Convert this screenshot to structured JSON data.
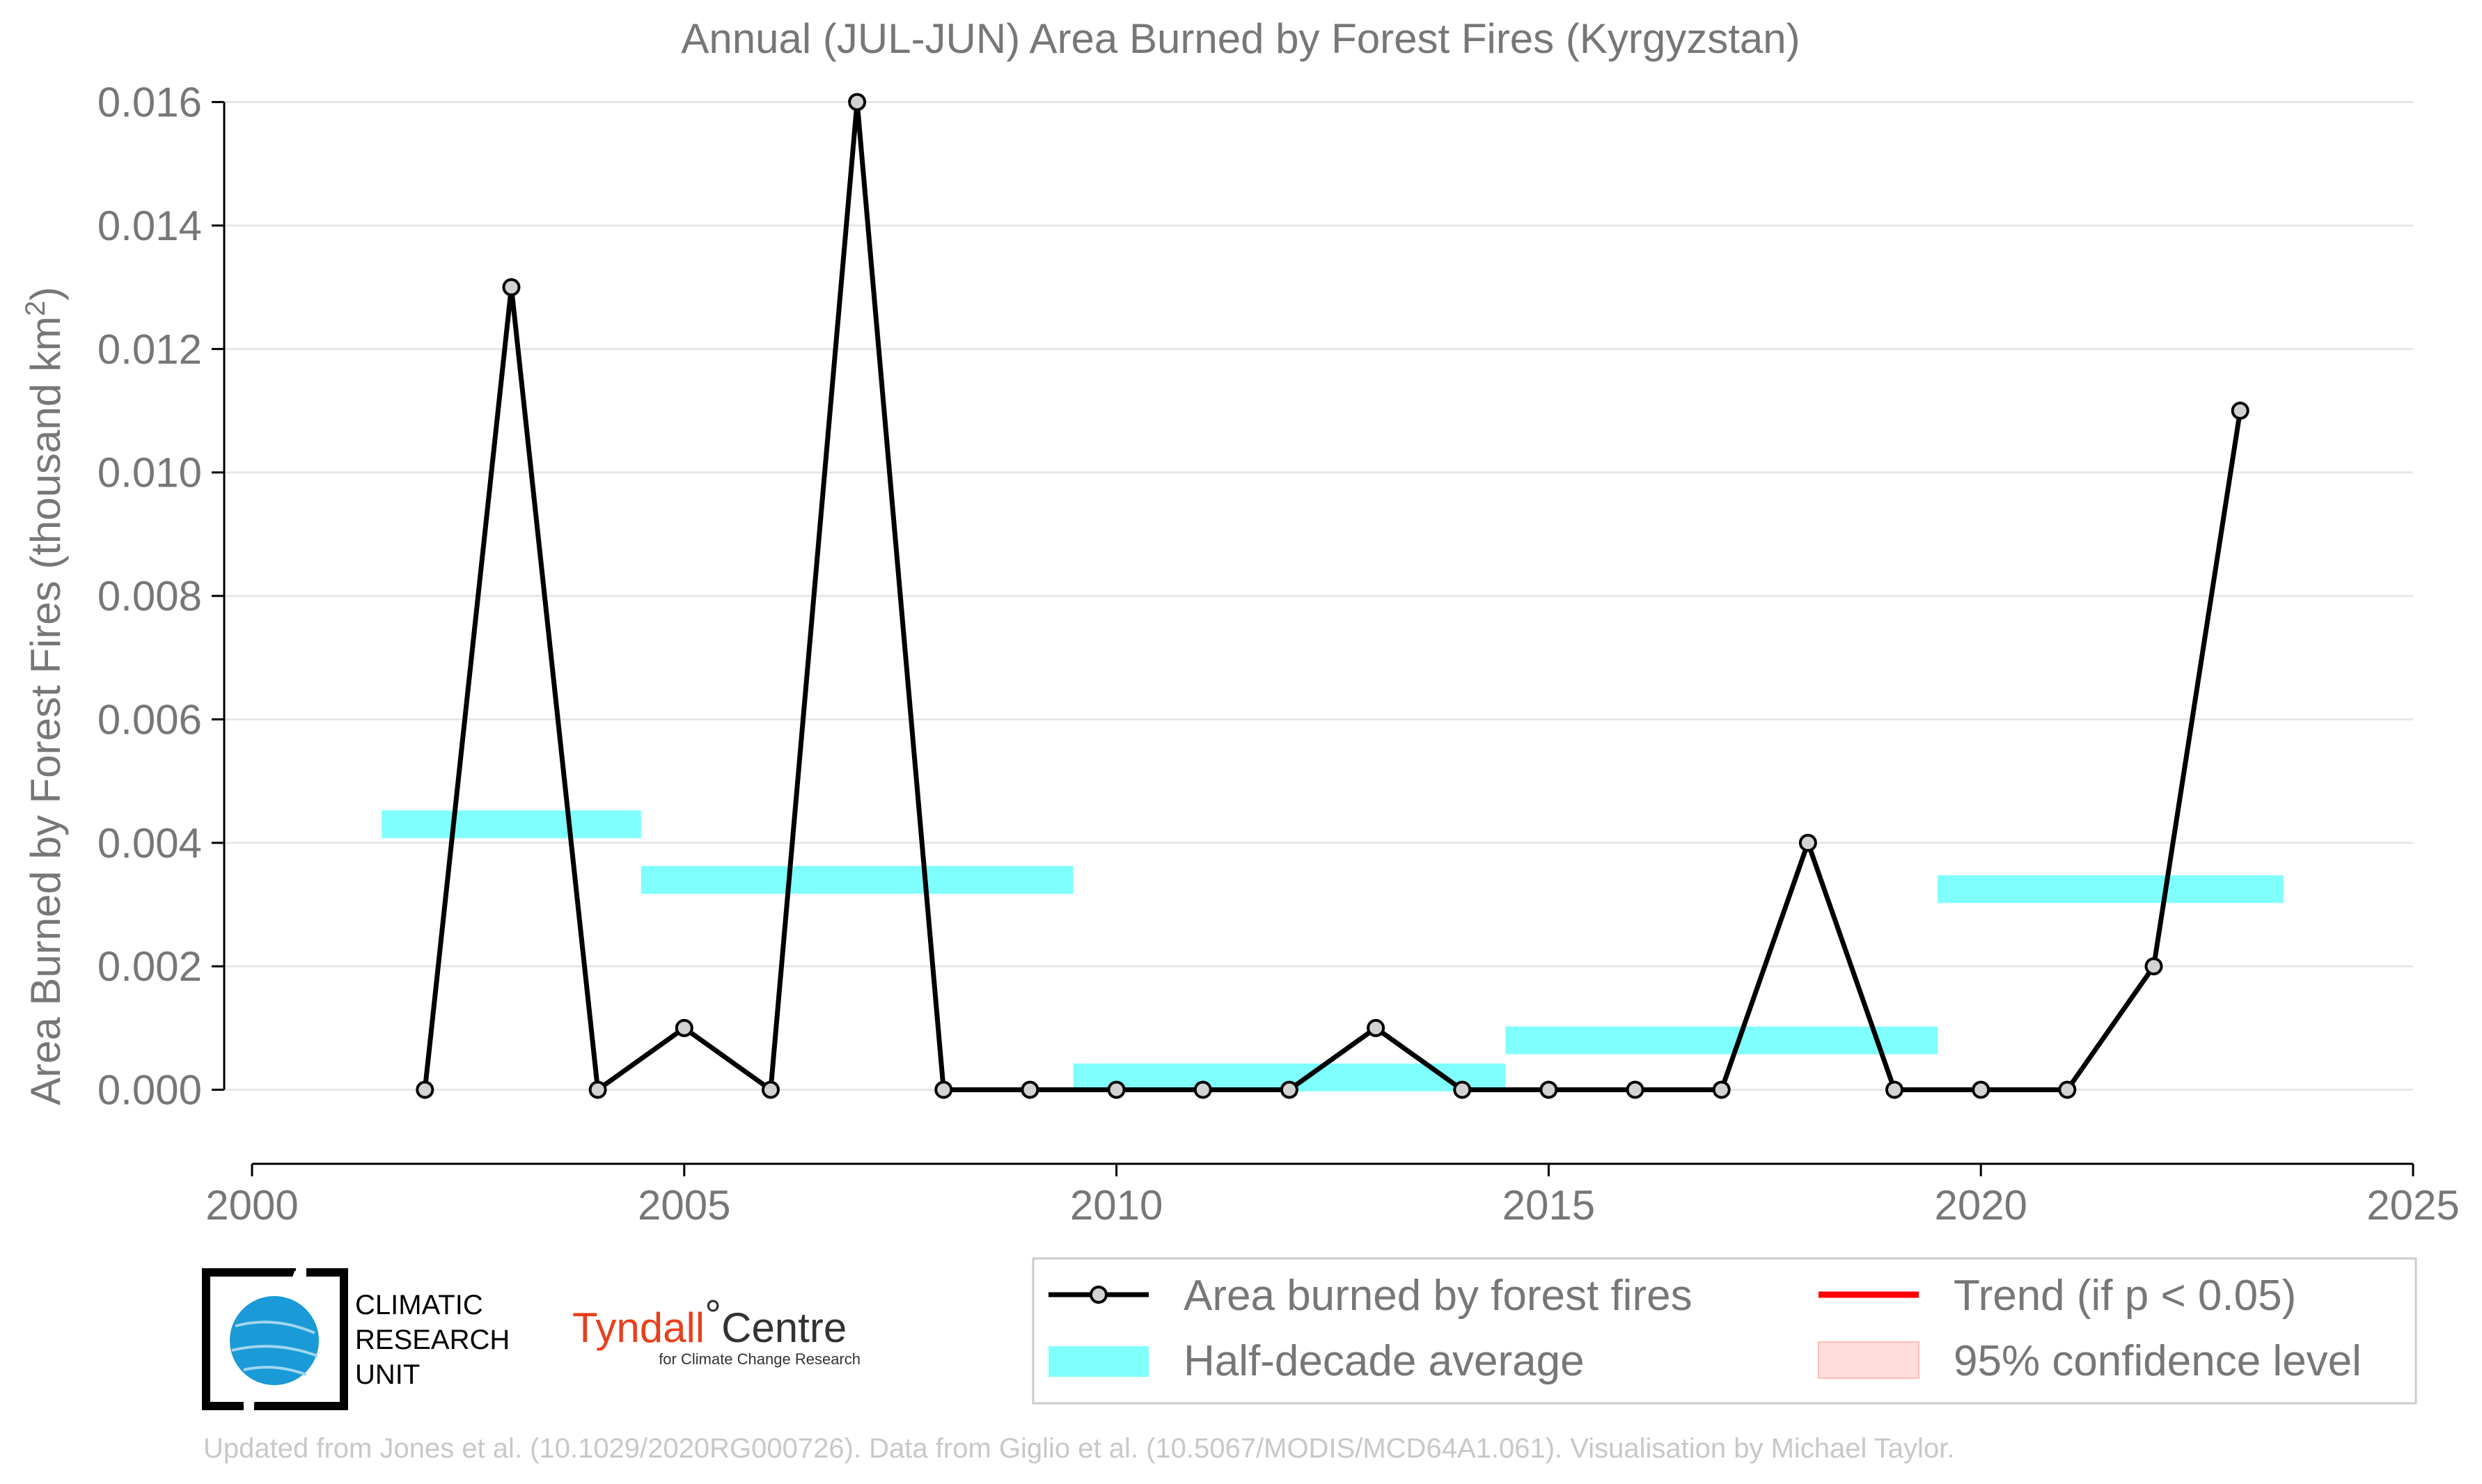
{
  "chart_data": {
    "type": "line",
    "title": "Annual (JUL-JUN) Area Burned by Forest Fires (Kyrgyzstan)",
    "ylabel": "Area Burned by Forest Fires (thousand km",
    "ylabel_sup": "2",
    "ylabel_close": ")",
    "xlabel": "",
    "xlim": [
      2000,
      2025
    ],
    "ylim": [
      -0.0012,
      0.0163
    ],
    "x_ticks": [
      2000,
      2005,
      2010,
      2015,
      2020,
      2025
    ],
    "x_tick_labels": [
      "2000",
      "2005",
      "2010",
      "2015",
      "2020",
      "2025"
    ],
    "y_ticks": [
      0.0,
      0.002,
      0.004,
      0.006,
      0.008,
      0.01,
      0.012,
      0.014,
      0.016
    ],
    "y_tick_labels": [
      "0.000",
      "0.002",
      "0.004",
      "0.006",
      "0.008",
      "0.010",
      "0.012",
      "0.014",
      "0.016"
    ],
    "grid": true,
    "series": [
      {
        "name": "Area burned by forest fires",
        "type": "line",
        "color": "#000000",
        "x": [
          2002,
          2003,
          2004,
          2005,
          2006,
          2007,
          2008,
          2009,
          2010,
          2011,
          2012,
          2013,
          2014,
          2015,
          2016,
          2017,
          2018,
          2019,
          2020,
          2021,
          2022,
          2023
        ],
        "y": [
          0.0,
          0.013,
          0.0,
          0.001,
          0.0,
          0.016,
          0.0,
          0.0,
          0.0,
          0.0,
          0.0,
          0.001,
          0.0,
          0.0,
          0.0,
          0.0,
          0.004,
          0.0,
          0.0,
          0.0,
          0.002,
          0.011
        ]
      },
      {
        "name": "Half-decade average",
        "type": "bars",
        "color": "#80ffff",
        "segments": [
          {
            "x0": 2001.5,
            "x1": 2004.5,
            "y": 0.0043
          },
          {
            "x0": 2004.5,
            "x1": 2009.5,
            "y": 0.0034
          },
          {
            "x0": 2009.5,
            "x1": 2014.5,
            "y": 0.0002
          },
          {
            "x0": 2014.5,
            "x1": 2019.5,
            "y": 0.0008
          },
          {
            "x0": 2019.5,
            "x1": 2023.5,
            "y": 0.00325
          }
        ]
      }
    ],
    "legend": {
      "placement": "bottom-right",
      "entries": [
        {
          "label": "Area burned by forest fires",
          "kind": "line-marker",
          "color": "#000000"
        },
        {
          "label": "Trend (if p < 0.05)",
          "kind": "line",
          "color": "#ff0000"
        },
        {
          "label": "Half-decade average",
          "kind": "patch",
          "color": "#80ffff"
        },
        {
          "label": "95% confidence level",
          "kind": "patch",
          "color": "#ffdddd"
        }
      ]
    },
    "logos": {
      "cru": [
        "CLIMATIC",
        "RESEARCH",
        "UNIT"
      ],
      "tyndall_main": "Tyndall",
      "tyndall_degree": "°",
      "tyndall_centre": "Centre",
      "tyndall_sub": "for Climate Change Research"
    },
    "footer": "Updated from Jones et al. (10.1029/2020RG000726). Data from Giglio et al. (10.5067/MODIS/MCD64A1.061). Visualisation by Michael Taylor."
  }
}
